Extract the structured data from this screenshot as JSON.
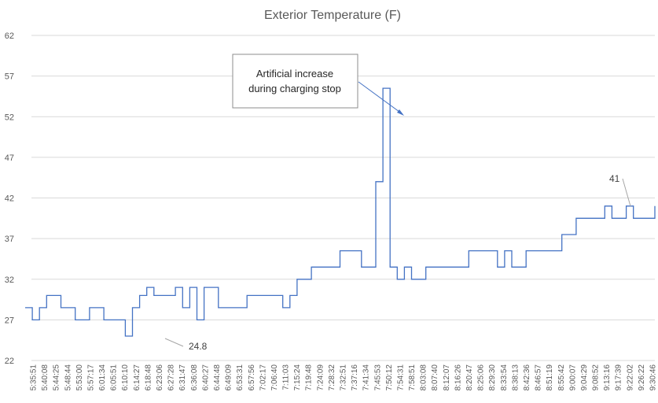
{
  "chart_data": {
    "type": "line",
    "title": "Exterior Temperature (F)",
    "ylim": [
      22,
      62
    ],
    "yticks": [
      22,
      27,
      32,
      37,
      42,
      47,
      52,
      57,
      62
    ],
    "grid": true,
    "xticks": [
      "5:35:51",
      "5:40:08",
      "5:44:25",
      "5:48:44",
      "5:53:00",
      "5:57:17",
      "6:01:34",
      "6:05:51",
      "6:10:10",
      "6:14:27",
      "6:18:48",
      "6:23:06",
      "6:27:28",
      "6:31:47",
      "6:36:08",
      "6:40:27",
      "6:44:48",
      "6:49:09",
      "6:53:31",
      "6:57:56",
      "7:02:17",
      "7:06:40",
      "7:11:03",
      "7:15:24",
      "7:19:48",
      "7:24:09",
      "7:28:32",
      "7:32:51",
      "7:37:16",
      "7:41:34",
      "7:45:53",
      "7:50:12",
      "7:54:31",
      "7:58:51",
      "8:03:08",
      "8:07:40",
      "8:12:07",
      "8:16:26",
      "8:20:47",
      "8:25:06",
      "8:29:30",
      "8:33:54",
      "8:38:13",
      "8:42:36",
      "8:46:57",
      "8:51:19",
      "8:55:42",
      "9:00:07",
      "9:04:29",
      "9:08:52",
      "9:13:16",
      "9:17:39",
      "9:22:02",
      "9:26:22",
      "9:30:46"
    ],
    "series": [
      {
        "values": [
          28.5,
          27,
          28.5,
          30,
          30,
          28.5,
          28.5,
          27,
          27,
          28.5,
          28.5,
          27,
          27,
          27,
          25,
          28.5,
          30,
          31,
          30,
          30,
          30,
          31,
          28.5,
          31,
          27,
          31,
          31,
          28.5,
          28.5,
          28.5,
          28.5,
          30,
          30,
          30,
          30,
          30,
          28.5,
          30,
          32,
          32,
          33.5,
          33.5,
          33.5,
          33.5,
          35.5,
          35.5,
          35.5,
          33.5,
          33.5,
          44,
          55.5,
          33.5,
          32,
          33.5,
          32,
          32,
          33.5,
          33.5,
          33.5,
          33.5,
          33.5,
          33.5,
          35.5,
          35.5,
          35.5,
          35.5,
          33.5,
          35.5,
          33.5,
          33.5,
          35.5,
          35.5,
          35.5,
          35.5,
          35.5,
          37.5,
          37.5,
          39.5,
          39.5,
          39.5,
          39.5,
          41,
          39.5,
          39.5,
          41,
          39.5,
          39.5,
          39.5,
          41
        ]
      }
    ],
    "annotations": [
      {
        "text": "24.8",
        "value": 24.8
      },
      {
        "text": "41",
        "value": 41
      },
      {
        "text": "Artificial increase during charging stop",
        "line1": "Artificial increase",
        "line2": "during charging stop"
      }
    ]
  }
}
